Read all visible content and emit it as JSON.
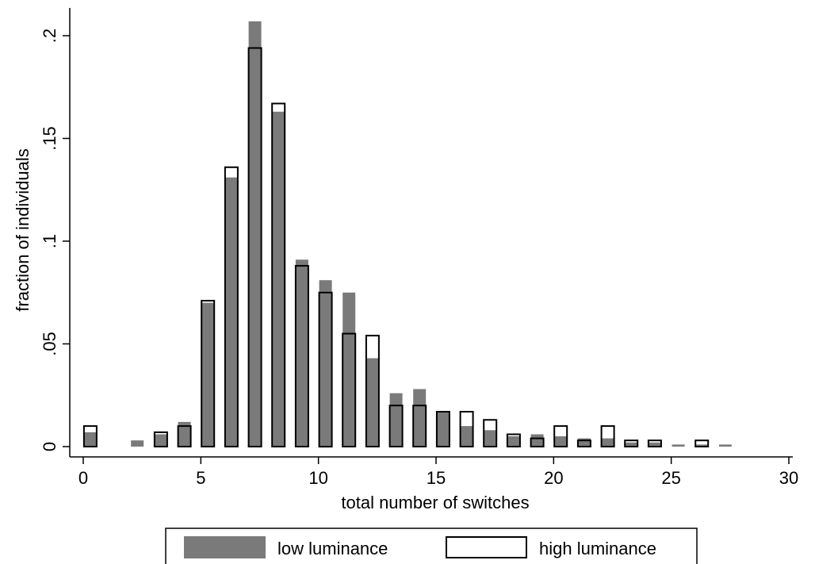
{
  "chart_data": {
    "type": "bar",
    "xlabel": "total number of switches",
    "ylabel": "fraction of individuals",
    "xlim": [
      0,
      30
    ],
    "ylim": [
      0,
      0.2
    ],
    "x_ticks": [
      {
        "value": 0,
        "label": "0"
      },
      {
        "value": 5,
        "label": "5"
      },
      {
        "value": 10,
        "label": "10"
      },
      {
        "value": 15,
        "label": "15"
      },
      {
        "value": 20,
        "label": "20"
      },
      {
        "value": 25,
        "label": "25"
      },
      {
        "value": 30,
        "label": "30"
      }
    ],
    "y_ticks": [
      {
        "value": 0,
        "label": "0"
      },
      {
        "value": 0.05,
        "label": ".05"
      },
      {
        "value": 0.1,
        "label": ".1"
      },
      {
        "value": 0.15,
        "label": ".15"
      },
      {
        "value": 0.2,
        "label": ".2"
      }
    ],
    "grid": false,
    "legend_position": "bottom",
    "series": [
      {
        "name": "low luminance",
        "style": "filled",
        "color": "#7a7a7a",
        "x": [
          0,
          2,
          3,
          4,
          5,
          6,
          7,
          8,
          9,
          10,
          11,
          12,
          13,
          14,
          15,
          16,
          17,
          18,
          19,
          20,
          21,
          22,
          23,
          24,
          25,
          26,
          27
        ],
        "values": [
          0.007,
          0.003,
          0.006,
          0.012,
          0.07,
          0.131,
          0.207,
          0.163,
          0.091,
          0.081,
          0.075,
          0.043,
          0.026,
          0.028,
          0.017,
          0.01,
          0.008,
          0.005,
          0.006,
          0.005,
          0.004,
          0.004,
          0.002,
          0.002,
          0.001,
          0.001,
          0.001
        ]
      },
      {
        "name": "high luminance",
        "style": "outline",
        "color": "#000000",
        "x": [
          0,
          3,
          4,
          5,
          6,
          7,
          8,
          9,
          10,
          11,
          12,
          13,
          14,
          15,
          16,
          17,
          18,
          19,
          20,
          21,
          22,
          23,
          24,
          26
        ],
        "values": [
          0.01,
          0.007,
          0.01,
          0.071,
          0.136,
          0.194,
          0.167,
          0.088,
          0.075,
          0.055,
          0.054,
          0.02,
          0.02,
          0.017,
          0.017,
          0.013,
          0.006,
          0.004,
          0.01,
          0.003,
          0.01,
          0.003,
          0.003,
          0.003
        ]
      }
    ]
  }
}
